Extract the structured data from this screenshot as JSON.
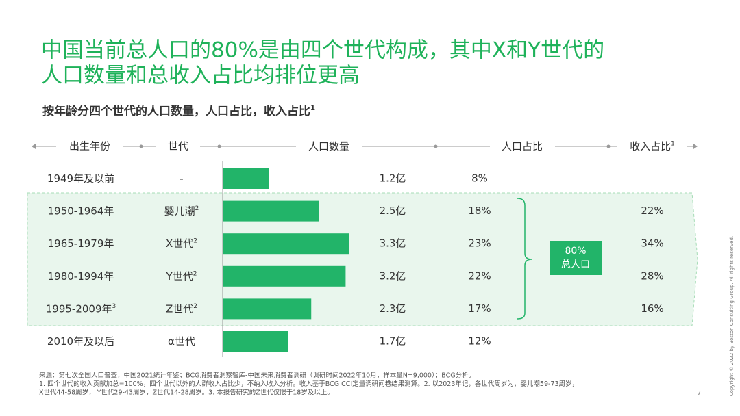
{
  "chart_data": {
    "type": "bar",
    "title": [
      "中国当前总人口的80%是由四个世代构成，其中X和Y世代的",
      "人口数量和总收入占比均排位更高"
    ],
    "subtitle": "按年龄分四个世代的人口数量，人口占比，收入占比",
    "subtitle_note": "1",
    "column_headers": [
      "出生年份",
      "世代"
    ],
    "categories": [
      "1949年及以前",
      "1950-1964年",
      "1965-1979年",
      "1980-1994年",
      "1995-2009年",
      "2010年及以后"
    ],
    "category_notes": [
      null,
      null,
      null,
      null,
      "3",
      null
    ],
    "generations": [
      "-",
      "婴儿潮",
      "X世代",
      "Y世代",
      "Z世代",
      "α世代"
    ],
    "generation_notes": [
      null,
      "2",
      "2",
      "2",
      "2",
      null
    ],
    "series": [
      {
        "name": "人口数量",
        "color": "#22b469",
        "values": [
          1.2,
          2.5,
          3.3,
          3.2,
          2.3,
          1.7
        ],
        "value_labels": [
          "1.2亿",
          "2.5亿",
          "3.3亿",
          "3.2亿",
          "2.3亿",
          "1.7亿"
        ]
      },
      {
        "name": "人口占比",
        "values": [
          8,
          18,
          23,
          22,
          17,
          12
        ],
        "value_labels": [
          "8%",
          "18%",
          "23%",
          "22%",
          "17%",
          "12%"
        ]
      },
      {
        "name": "收入占比",
        "note": "1",
        "values": [
          null,
          22,
          34,
          28,
          16,
          null
        ],
        "value_labels": [
          null,
          "22%",
          "34%",
          "28%",
          "16%",
          null
        ]
      }
    ],
    "annotation": [
      "80%",
      "总人口"
    ],
    "footnotes": [
      "来源：第七次全国人口普查，中国2021统计年鉴；BCG消费者洞察智库-中国未来消费者调研（调研时间2022年10月，样本量N=9,000）；BCG分析。",
      "1. 四个世代的收入贡献加总=100%，四个世代以外的人群收入占比少，不纳入收入分析。收入基于BCG CCI定量调研问卷结果测算。2. 以2023年记，各世代周岁为，婴儿潮59-73周岁，",
      "X世代44-58周岁， Y世代29-43周岁，Z世代14-28周岁。3. 本报告研究的Z世代仅限于18岁及以上。"
    ],
    "page_number": "7",
    "copyright": "Copyright © 2022 by Boston Consulting Group. All rights reserved."
  }
}
